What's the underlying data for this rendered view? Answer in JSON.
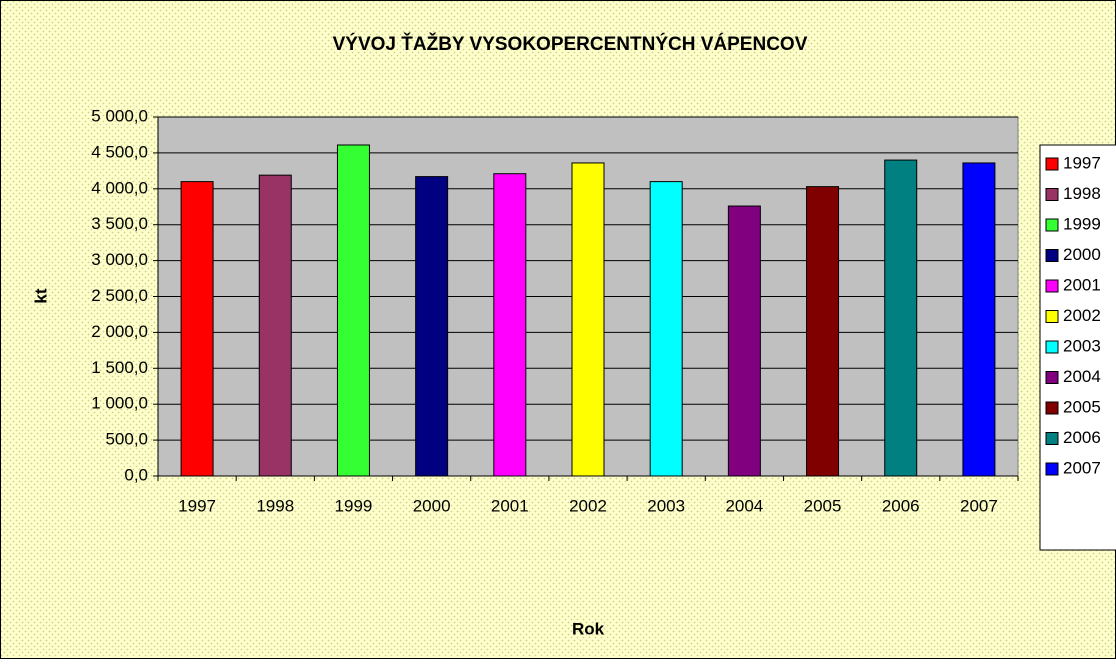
{
  "chart_data": {
    "type": "bar",
    "title": "VÝVOJ ŤAŽBY VYSOKOPERCENTNÝCH VÁPENCOV",
    "x_label": "Rok",
    "y_label": "kt",
    "categories": [
      "1997",
      "1998",
      "1999",
      "2000",
      "2001",
      "2002",
      "2003",
      "2004",
      "2005",
      "2006",
      "2007"
    ],
    "values": [
      4100,
      4190,
      4610,
      4170,
      4210,
      4360,
      4100,
      3760,
      4030,
      4400,
      4360
    ],
    "colors": [
      "#ff0000",
      "#993366",
      "#33ff33",
      "#000080",
      "#ff00ff",
      "#ffff00",
      "#00ffff",
      "#800080",
      "#800000",
      "#008080",
      "#0000ff"
    ],
    "ylim": [
      0,
      5000
    ],
    "yticks": [
      {
        "value": 0,
        "label": "0,0"
      },
      {
        "value": 500,
        "label": "500,0"
      },
      {
        "value": 1000,
        "label": "1 000,0"
      },
      {
        "value": 1500,
        "label": "1 500,0"
      },
      {
        "value": 2000,
        "label": "2 000,0"
      },
      {
        "value": 2500,
        "label": "2 500,0"
      },
      {
        "value": 3000,
        "label": "3 000,0"
      },
      {
        "value": 3500,
        "label": "3 500,0"
      },
      {
        "value": 4000,
        "label": "4 000,0"
      },
      {
        "value": 4500,
        "label": "4 500,0"
      },
      {
        "value": 5000,
        "label": "5 000,0"
      }
    ],
    "grid": true,
    "legend": "right"
  }
}
